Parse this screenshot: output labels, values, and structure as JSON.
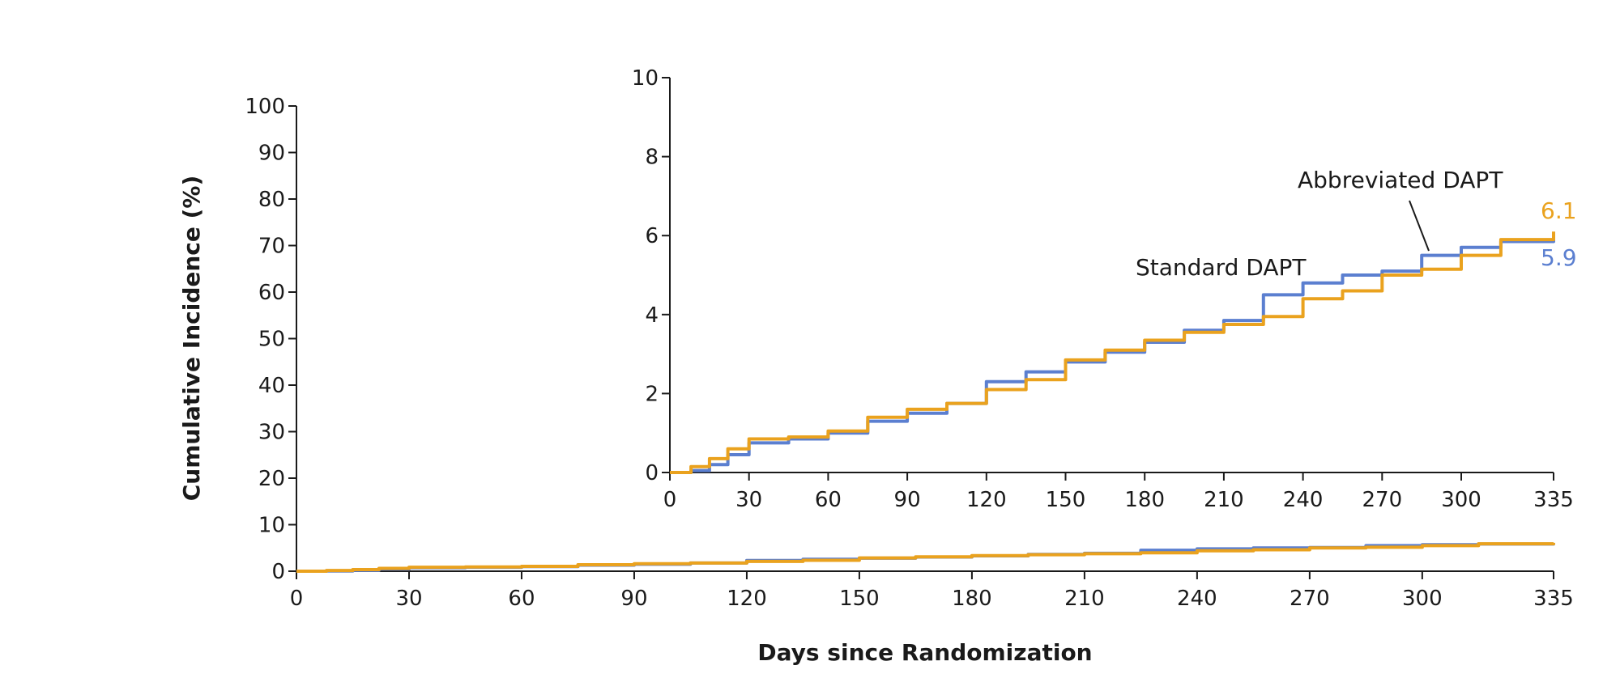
{
  "colors": {
    "Standard DAPT": "#5b7fd0",
    "Abbreviated DAPT": "#eaa21e",
    "axis": "#1a1a1a"
  },
  "chart_data": {
    "type": "line",
    "step": true,
    "xlabel": "Days since Randomization",
    "ylabel": "Cumulative Incidence (%)",
    "xlim": [
      0,
      335
    ],
    "ylim": [
      0,
      100
    ],
    "xticks": [
      0,
      30,
      60,
      90,
      120,
      150,
      180,
      210,
      240,
      270,
      300,
      335
    ],
    "yticks": [
      0,
      10,
      20,
      30,
      40,
      50,
      60,
      70,
      80,
      90,
      100
    ],
    "series": [
      {
        "name": "Standard DAPT",
        "x": [
          0,
          8,
          15,
          22,
          30,
          45,
          60,
          75,
          90,
          105,
          120,
          135,
          150,
          165,
          180,
          195,
          210,
          225,
          240,
          255,
          270,
          285,
          300,
          315,
          335
        ],
        "y": [
          0,
          0.05,
          0.2,
          0.45,
          0.75,
          0.85,
          1.0,
          1.3,
          1.5,
          1.75,
          2.3,
          2.55,
          2.8,
          3.05,
          3.3,
          3.6,
          3.85,
          4.5,
          4.8,
          5.0,
          5.1,
          5.5,
          5.7,
          5.85,
          5.9
        ]
      },
      {
        "name": "Abbreviated DAPT",
        "x": [
          0,
          8,
          15,
          22,
          30,
          45,
          60,
          75,
          90,
          105,
          120,
          135,
          150,
          165,
          180,
          195,
          210,
          225,
          240,
          255,
          270,
          285,
          300,
          315,
          335
        ],
        "y": [
          0,
          0.15,
          0.35,
          0.6,
          0.85,
          0.9,
          1.05,
          1.4,
          1.6,
          1.75,
          2.1,
          2.35,
          2.85,
          3.1,
          3.35,
          3.55,
          3.75,
          3.95,
          4.4,
          4.6,
          5.0,
          5.15,
          5.5,
          5.9,
          6.1
        ]
      }
    ],
    "inset": {
      "ylim": [
        0,
        10
      ],
      "yticks": [
        0,
        2,
        4,
        6,
        8,
        10
      ],
      "xticks": [
        0,
        30,
        60,
        90,
        120,
        150,
        180,
        210,
        240,
        270,
        300,
        335
      ]
    },
    "annotations": {
      "standard_label": "Standard DAPT",
      "abbreviated_label": "Abbreviated DAPT",
      "standard_end_value": "5.9",
      "abbreviated_end_value": "6.1"
    }
  }
}
